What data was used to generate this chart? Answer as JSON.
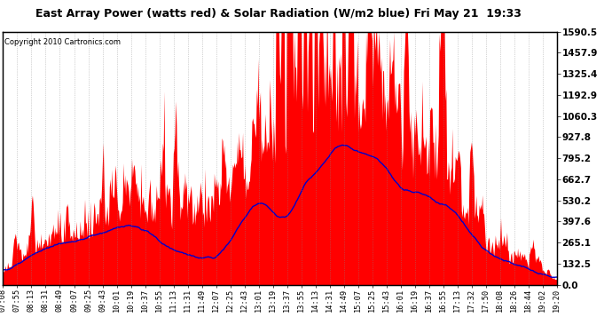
{
  "title": "East Array Power (watts red) & Solar Radiation (W/m2 blue) Fri May 21  19:33",
  "copyright": "Copyright 2010 Cartronics.com",
  "ymax": 1590.5,
  "ymin": 0.0,
  "yticks": [
    0.0,
    132.5,
    265.1,
    397.6,
    530.2,
    662.7,
    795.2,
    927.8,
    1060.3,
    1192.9,
    1325.4,
    1457.9,
    1590.5
  ],
  "bg_color": "#ffffff",
  "plot_bg_color": "#ffffff",
  "grid_color": "#888888",
  "red_color": "#ff0000",
  "blue_color": "#0000cc",
  "x_labels": [
    "07:08",
    "07:55",
    "08:13",
    "08:31",
    "08:49",
    "09:07",
    "09:25",
    "09:43",
    "10:01",
    "10:19",
    "10:37",
    "10:55",
    "11:13",
    "11:31",
    "11:49",
    "12:07",
    "12:25",
    "12:43",
    "13:01",
    "13:19",
    "13:37",
    "13:55",
    "14:13",
    "14:31",
    "14:49",
    "15:07",
    "15:25",
    "15:43",
    "16:01",
    "16:19",
    "16:37",
    "16:55",
    "17:13",
    "17:32",
    "17:50",
    "18:08",
    "18:26",
    "18:44",
    "19:02",
    "19:20"
  ]
}
